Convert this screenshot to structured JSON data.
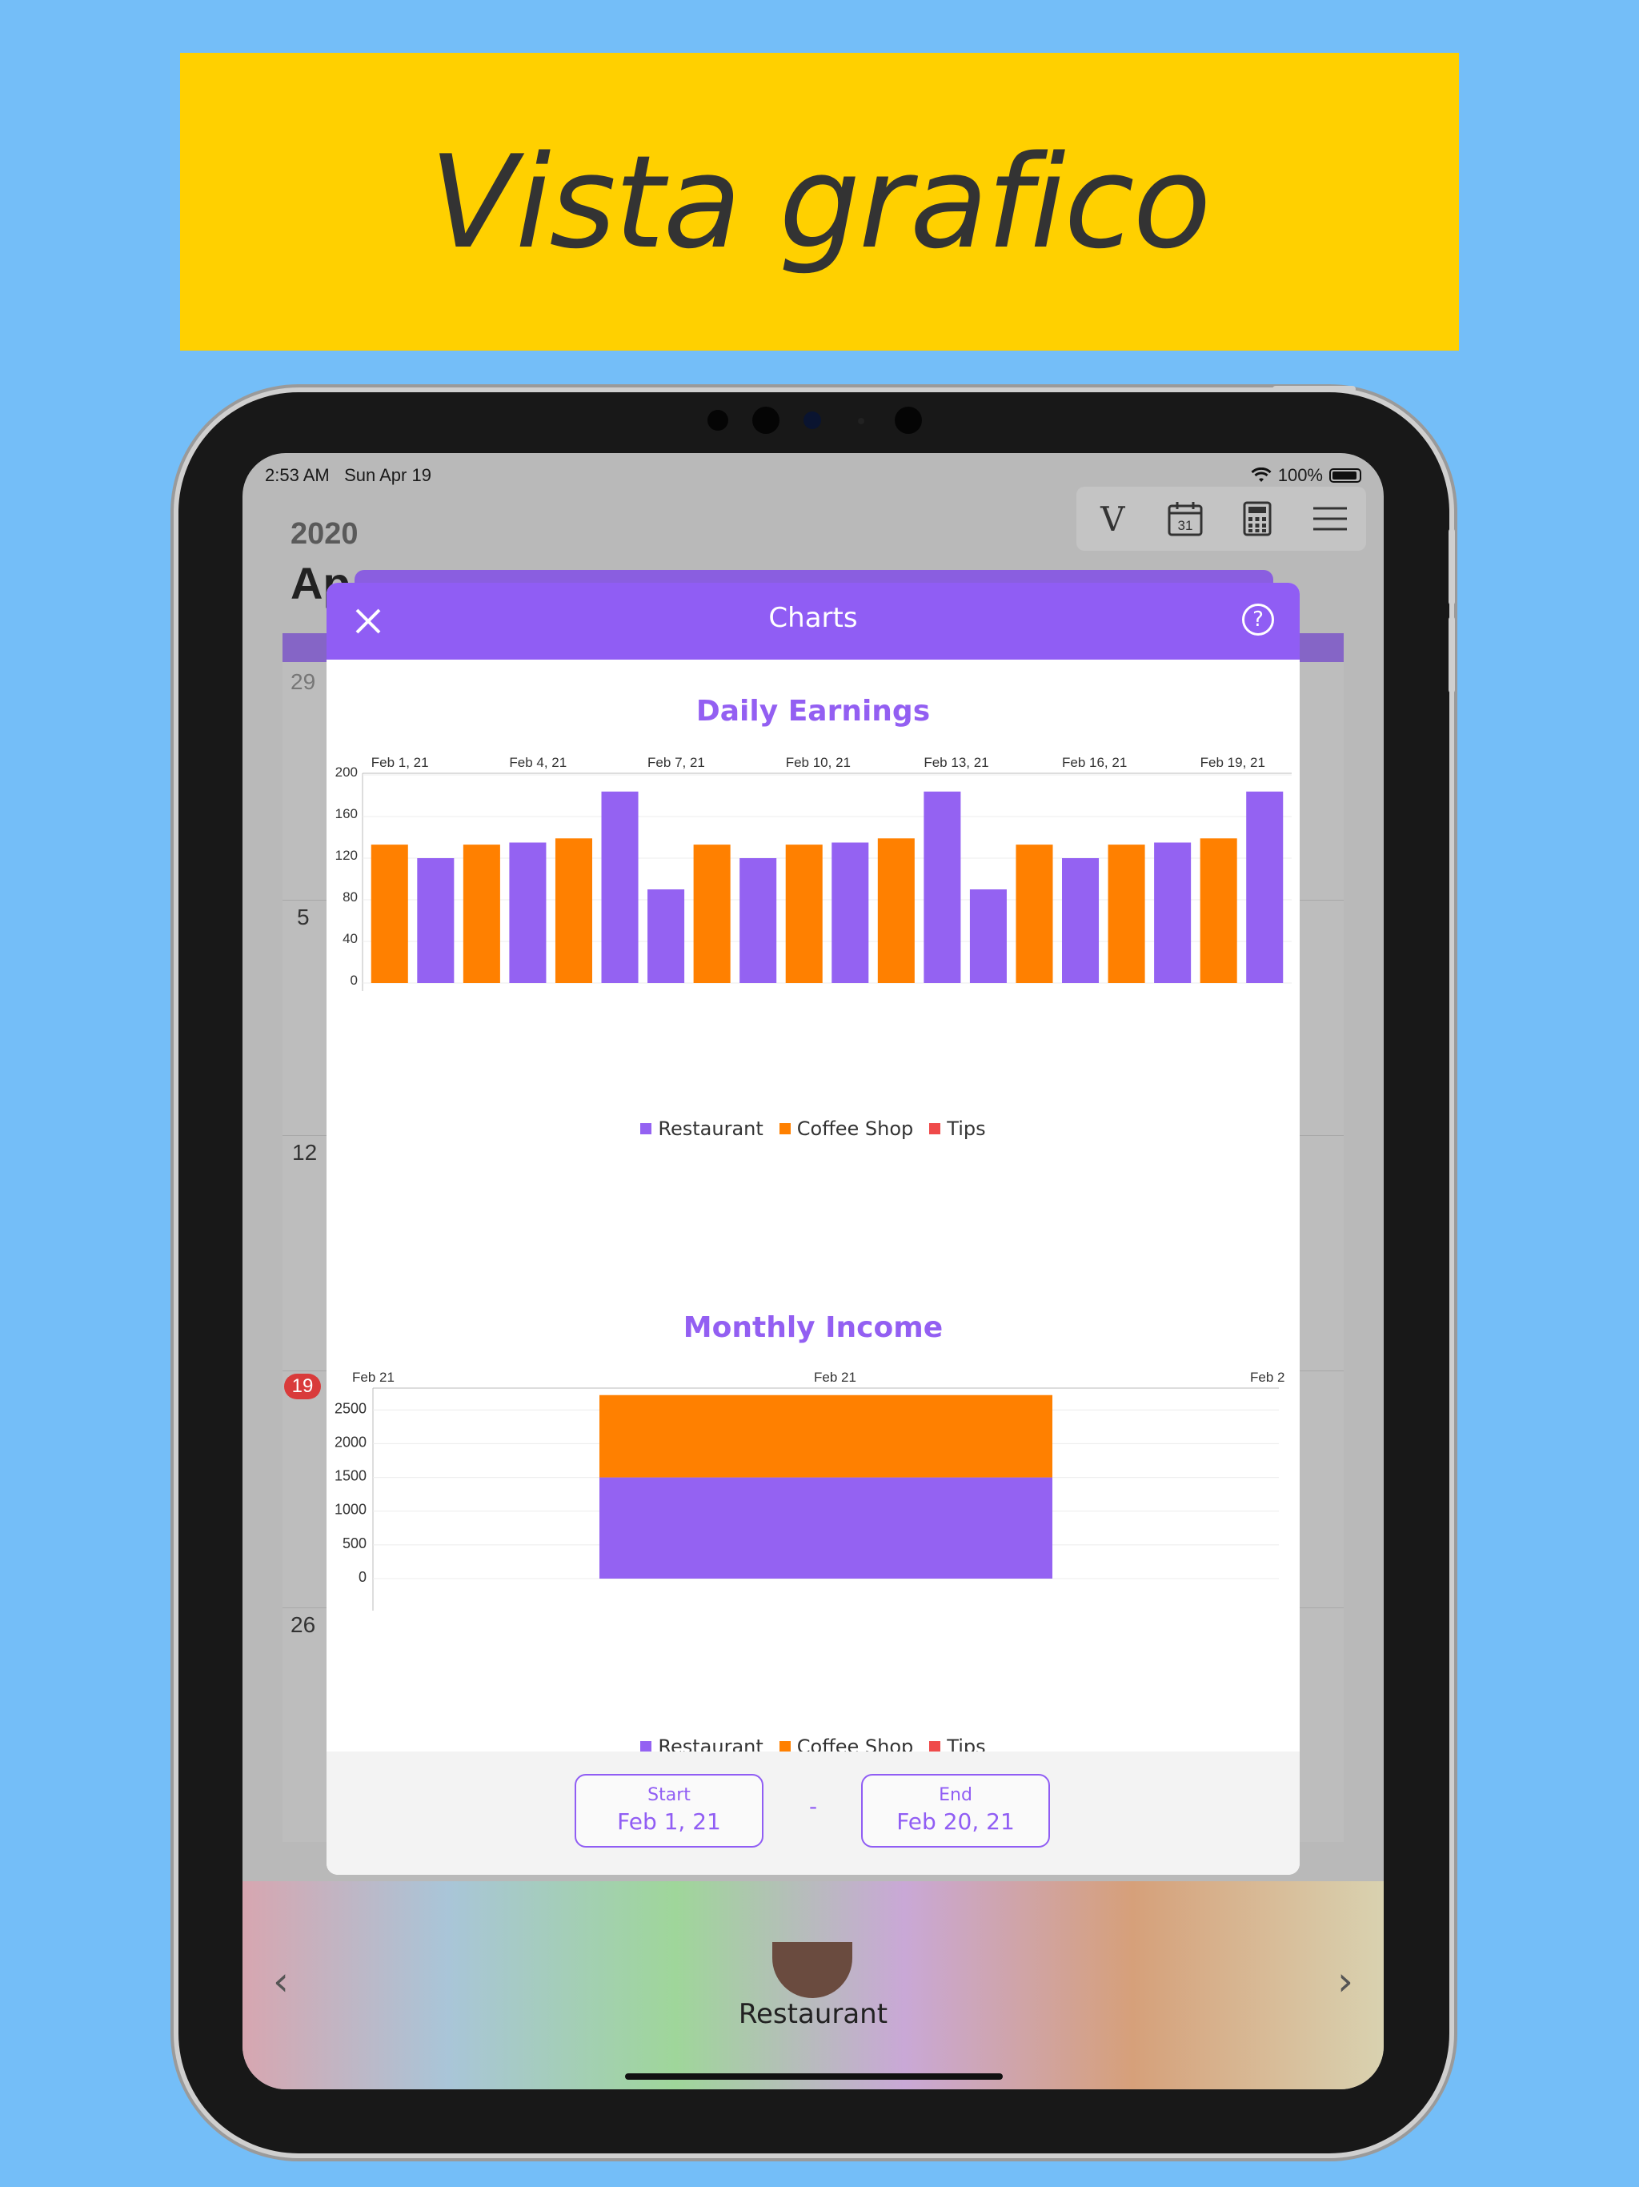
{
  "banner": {
    "title": "Vista grafico"
  },
  "status_bar": {
    "time": "2:53 AM",
    "date": "Sun Apr 19",
    "battery": "100%"
  },
  "toolbar": {
    "items": [
      "v-logo-icon",
      "calendar-icon",
      "calculator-icon",
      "menu-icon"
    ],
    "calendar_day": "31",
    "v_label": "V"
  },
  "background": {
    "year": "2020",
    "month_partial": "Ap",
    "days": [
      "29",
      "5",
      "12",
      "19",
      "26"
    ],
    "bottom_label": "Restaurant"
  },
  "modal": {
    "title": "Charts",
    "help_label": "?",
    "start_label": "Start",
    "start_value": "Feb 1, 21",
    "separator": "-",
    "end_label": "End",
    "end_value": "Feb 20, 21"
  },
  "colors": {
    "restaurant": "#9462f2",
    "coffee_shop": "#ff8000",
    "tips": "#ef4a4a",
    "accent": "#905df4",
    "banner": "#ffd000"
  },
  "chart_data": [
    {
      "type": "bar",
      "title": "Daily Earnings",
      "x_tick_labels": [
        "Feb 1, 21",
        "Feb 4, 21",
        "Feb 7, 21",
        "Feb 10, 21",
        "Feb 13, 21",
        "Feb 16, 21",
        "Feb 19, 21"
      ],
      "y_ticks": [
        0,
        40,
        80,
        120,
        160,
        200
      ],
      "ylim": [
        0,
        200
      ],
      "bars": [
        {
          "series": "Coffee Shop",
          "value": 133
        },
        {
          "series": "Restaurant",
          "value": 120
        },
        {
          "series": "Coffee Shop",
          "value": 133
        },
        {
          "series": "Restaurant",
          "value": 135
        },
        {
          "series": "Coffee Shop",
          "value": 139
        },
        {
          "series": "Restaurant",
          "value": 184
        },
        {
          "series": "Restaurant",
          "value": 90
        },
        {
          "series": "Coffee Shop",
          "value": 133
        },
        {
          "series": "Restaurant",
          "value": 120
        },
        {
          "series": "Coffee Shop",
          "value": 133
        },
        {
          "series": "Restaurant",
          "value": 135
        },
        {
          "series": "Coffee Shop",
          "value": 139
        },
        {
          "series": "Restaurant",
          "value": 184
        },
        {
          "series": "Restaurant",
          "value": 90
        },
        {
          "series": "Coffee Shop",
          "value": 133
        },
        {
          "series": "Restaurant",
          "value": 120
        },
        {
          "series": "Coffee Shop",
          "value": 133
        },
        {
          "series": "Restaurant",
          "value": 135
        },
        {
          "series": "Coffee Shop",
          "value": 139
        },
        {
          "series": "Restaurant",
          "value": 184
        }
      ],
      "legend": [
        "Restaurant",
        "Coffee Shop",
        "Tips"
      ],
      "grid": true,
      "legend_position": "bottom"
    },
    {
      "type": "bar",
      "stacked": true,
      "title": "Monthly Income",
      "x_tick_labels": [
        "Feb 21",
        "Feb 21",
        "Feb 2"
      ],
      "y_ticks": [
        0,
        500,
        1000,
        1500,
        2000,
        2500
      ],
      "ylim": [
        0,
        2800
      ],
      "categories": [
        "Feb 21"
      ],
      "series": [
        {
          "name": "Restaurant",
          "values": [
            1500
          ]
        },
        {
          "name": "Coffee Shop",
          "values": [
            1220
          ]
        }
      ],
      "legend": [
        "Restaurant",
        "Coffee Shop",
        "Tips"
      ],
      "grid": true,
      "legend_position": "bottom"
    }
  ]
}
